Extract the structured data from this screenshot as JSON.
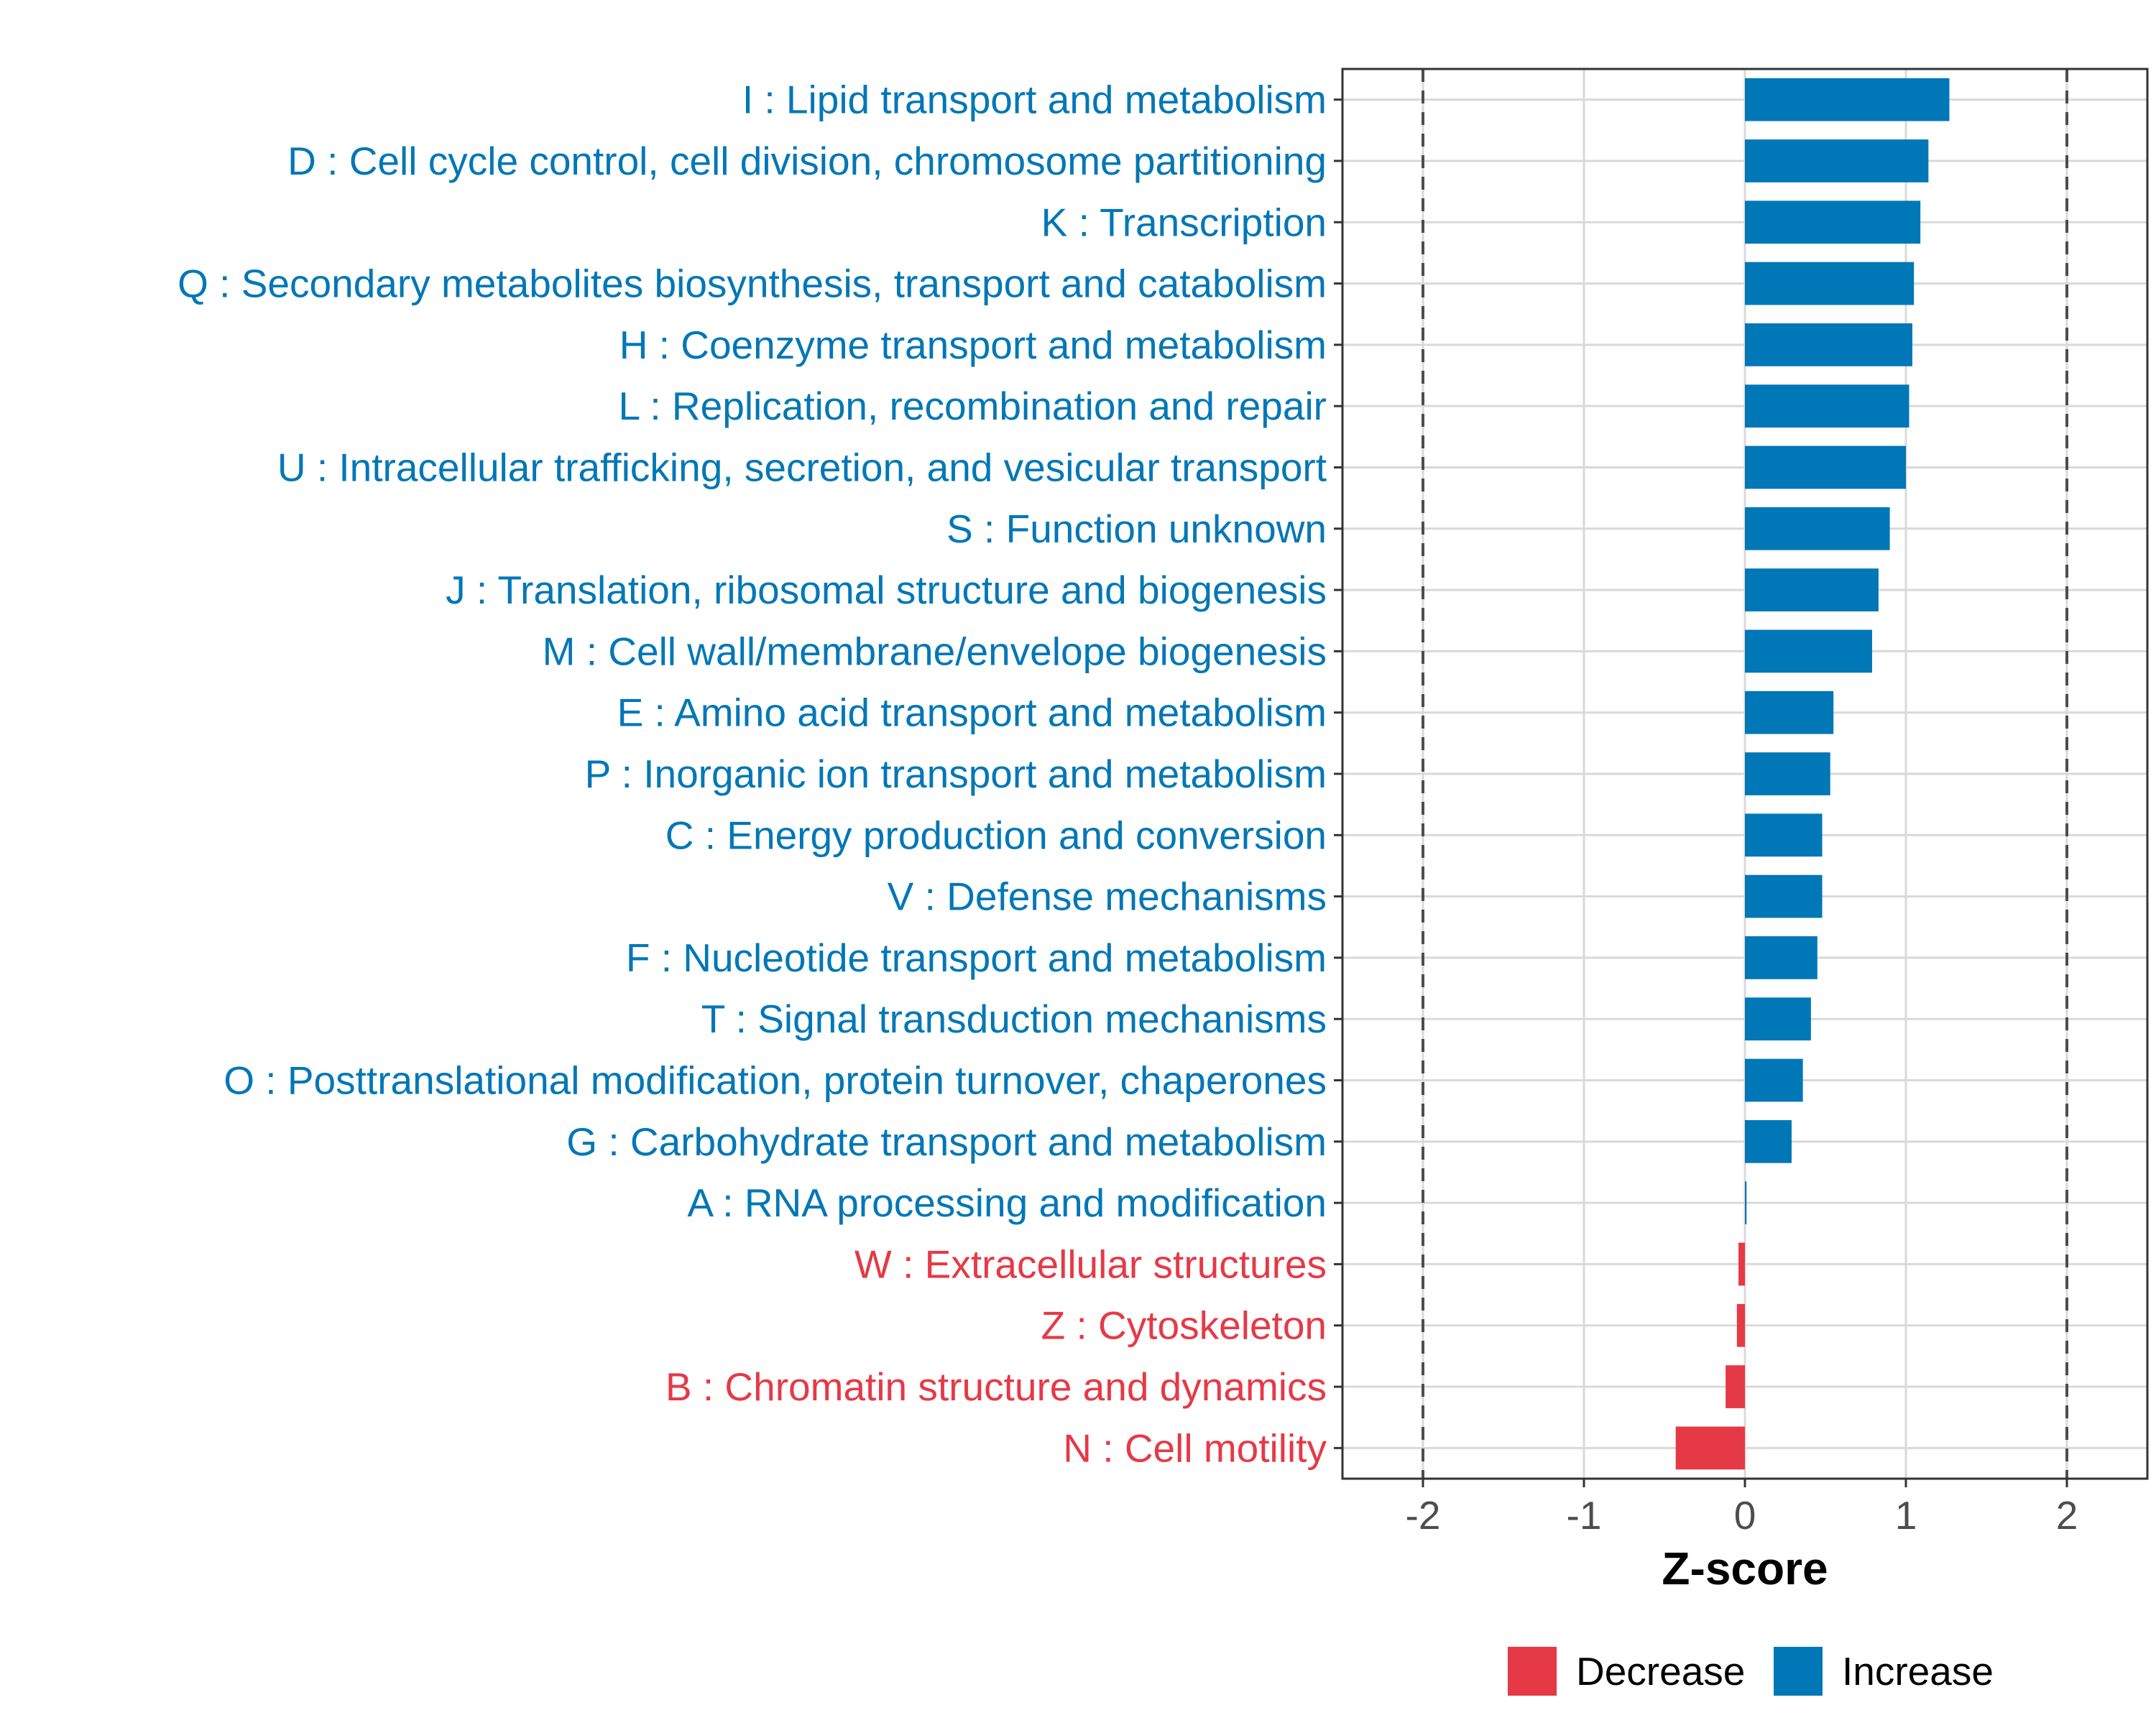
{
  "chart_data": {
    "type": "bar",
    "orientation": "horizontal",
    "title": "",
    "xlabel": "Z-score",
    "ylabel": "",
    "xlim": [
      -2.5,
      2.5
    ],
    "xticks": [
      -2,
      -1,
      0,
      1,
      2
    ],
    "xtick_labels": [
      "-2",
      "-1",
      "0",
      "1",
      "2"
    ],
    "reference_lines": [
      -2,
      2
    ],
    "grid": true,
    "legend_position": "bottom",
    "colors": {
      "Decrease": "#E63946",
      "Increase": "#0077B6"
    },
    "legend": [
      {
        "name": "Decrease",
        "color": "#E63946"
      },
      {
        "name": "Increase",
        "color": "#0077B6"
      }
    ],
    "categories": [
      "I : Lipid transport and metabolism",
      "D : Cell cycle control, cell division, chromosome partitioning",
      "K : Transcription",
      "Q : Secondary metabolites biosynthesis, transport and catabolism",
      "H : Coenzyme transport and metabolism",
      "L : Replication, recombination and repair",
      "U : Intracellular trafficking, secretion, and vesicular transport",
      "S : Function unknown",
      "J : Translation, ribosomal structure and biogenesis",
      "M : Cell wall/membrane/envelope biogenesis",
      "E : Amino acid transport and metabolism",
      "P : Inorganic ion transport and metabolism",
      "C : Energy production and conversion",
      "V : Defense mechanisms",
      "F : Nucleotide transport and metabolism",
      "T : Signal transduction mechanisms",
      "O : Posttranslational modification, protein turnover, chaperones",
      "G : Carbohydrate transport and metabolism",
      "A : RNA processing and modification",
      "W : Extracellular structures",
      "Z : Cytoskeleton",
      "B : Chromatin structure and dynamics",
      "N : Cell motility"
    ],
    "values": [
      1.27,
      1.14,
      1.09,
      1.05,
      1.04,
      1.02,
      1.0,
      0.9,
      0.83,
      0.79,
      0.55,
      0.53,
      0.48,
      0.48,
      0.45,
      0.41,
      0.36,
      0.29,
      0.01,
      -0.04,
      -0.05,
      -0.12,
      -0.43
    ],
    "groups": [
      "Increase",
      "Increase",
      "Increase",
      "Increase",
      "Increase",
      "Increase",
      "Increase",
      "Increase",
      "Increase",
      "Increase",
      "Increase",
      "Increase",
      "Increase",
      "Increase",
      "Increase",
      "Increase",
      "Increase",
      "Increase",
      "Increase",
      "Decrease",
      "Decrease",
      "Decrease",
      "Decrease"
    ]
  }
}
